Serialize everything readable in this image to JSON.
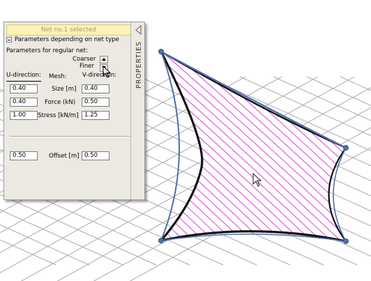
{
  "panel": {
    "status": "Net no.1 selected",
    "tab_title": "PROPERTIES",
    "section_title": "Parameters depending on net type",
    "regular_net_label": "Parameters for regular net:",
    "coarser_label": "Coarser",
    "finer_label": "Finer",
    "u_direction_label": "U-direction:",
    "mesh_label": "Mesh:",
    "v_direction_label": "V-direction:",
    "rows": [
      {
        "label": "Size [m]",
        "u": "0.40",
        "v": "0.40"
      },
      {
        "label": "Force (kN)",
        "u": "0.40",
        "v": "0.50"
      },
      {
        "label": "Stress [kN/m]",
        "u": "1.00",
        "v": "1.25"
      }
    ],
    "offset": {
      "label": "Offset [m]",
      "u": "0.50",
      "v": "0.50"
    }
  },
  "icons": {
    "collapse": "collapse-triangle-icon",
    "section_toggle": "minus-box-icon",
    "spin_up": "up-arrow-icon",
    "spin_down": "down-arrow-icon",
    "cursor": "mouse-cursor-icon"
  },
  "colors": {
    "background": "#ffffff",
    "grid": "#a8a8a8",
    "edge_cable": "#4f6fa8",
    "boundary": "#111111",
    "mesh_lines": "#d82fd8",
    "status_bg": "#fbf2b4",
    "panel_bg": "#ece9e2"
  }
}
